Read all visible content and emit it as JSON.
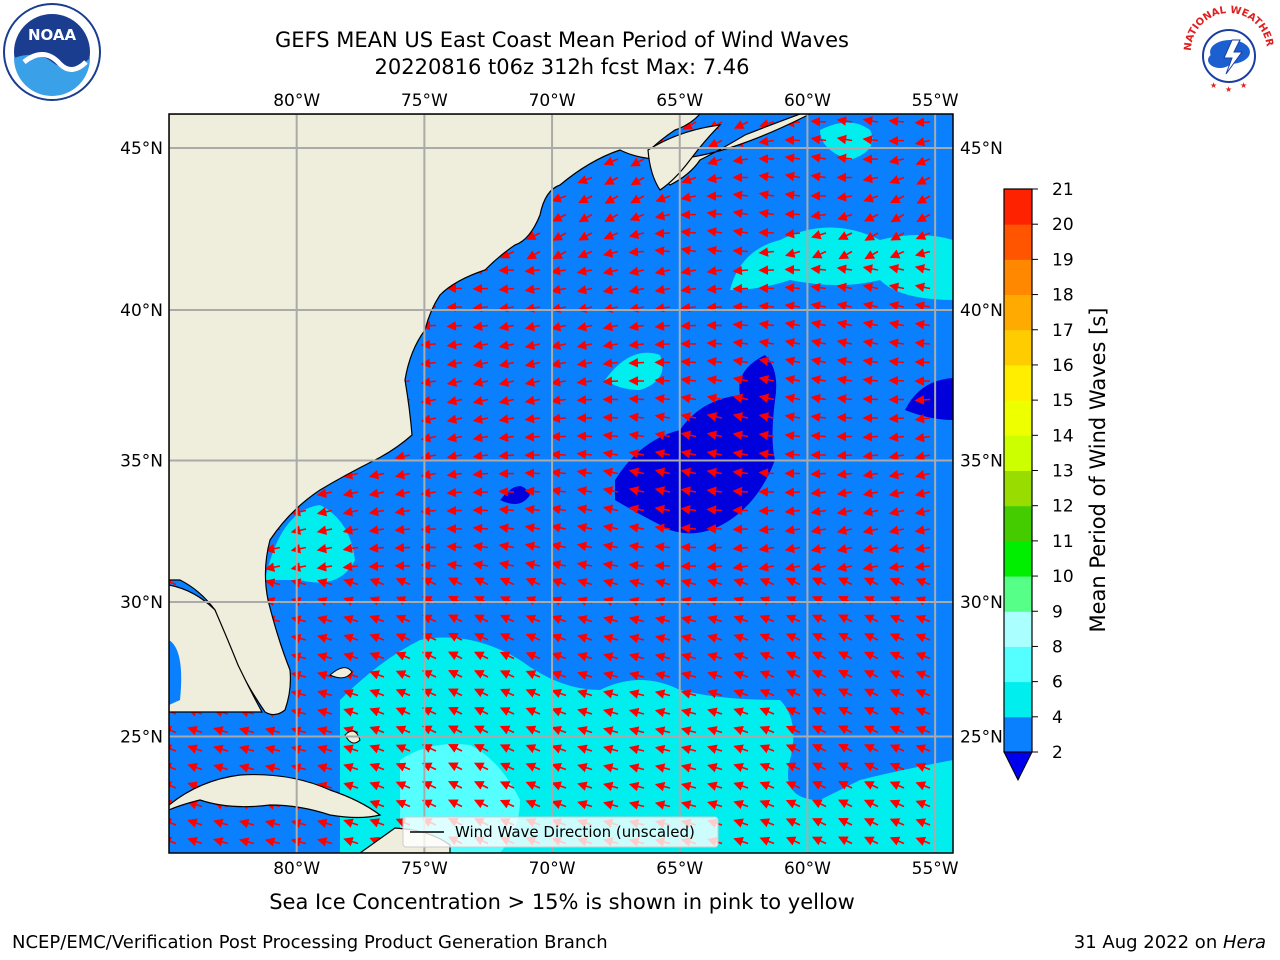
{
  "title": {
    "line1": "GEFS MEAN US East Coast Mean Period of Wind Waves",
    "line2": "20220816 t06z 312h fcst   Max: 7.46"
  },
  "map": {
    "lon_labels": [
      "80°W",
      "75°W",
      "70°W",
      "65°W",
      "60°W",
      "55°W"
    ],
    "lat_labels": [
      "45°N",
      "40°N",
      "35°N",
      "30°N",
      "25°N"
    ],
    "lon_values": [
      -80,
      -75,
      -70,
      -65,
      -60,
      -55
    ],
    "lat_values": [
      45,
      40,
      35,
      30,
      25
    ],
    "extent": {
      "west": -85,
      "east": -54.3,
      "south": 20.5,
      "north": 46
    },
    "legend_label": "Wind Wave Direction (unscaled)",
    "arrow_color": "#ff0000",
    "land_color": "#efeddb",
    "ocean_colors": {
      "2-4": "#0a80ff",
      "4-6": "#00eeee",
      "6-8": "#55ffff",
      "below_2": "#0000dd"
    }
  },
  "colorbar": {
    "label": "Mean Period of Wind Waves [s]",
    "ticks": [
      "2",
      "4",
      "6",
      "8",
      "9",
      "10",
      "11",
      "12",
      "13",
      "14",
      "15",
      "16",
      "17",
      "18",
      "19",
      "20",
      "21"
    ],
    "colors": [
      "#0a80ff",
      "#00eeee",
      "#55ffff",
      "#aaffff",
      "#55ff88",
      "#00ee00",
      "#44cc00",
      "#99dd00",
      "#ccff00",
      "#eeff00",
      "#ffee00",
      "#ffcc00",
      "#ffaa00",
      "#ff8800",
      "#ff5500",
      "#ff2200"
    ],
    "extend_color": "#0000ee"
  },
  "notes": {
    "sea_ice": "Sea Ice Concentration > 15% is shown in pink to yellow",
    "credit": "NCEP/EMC/Verification Post Processing Product Generation Branch",
    "date": "31 Aug 2022 on ",
    "host": "Hera"
  },
  "logos": {
    "noaa_text": "NOAA",
    "nws_text": "NATIONAL WEATHER SERVICE"
  }
}
